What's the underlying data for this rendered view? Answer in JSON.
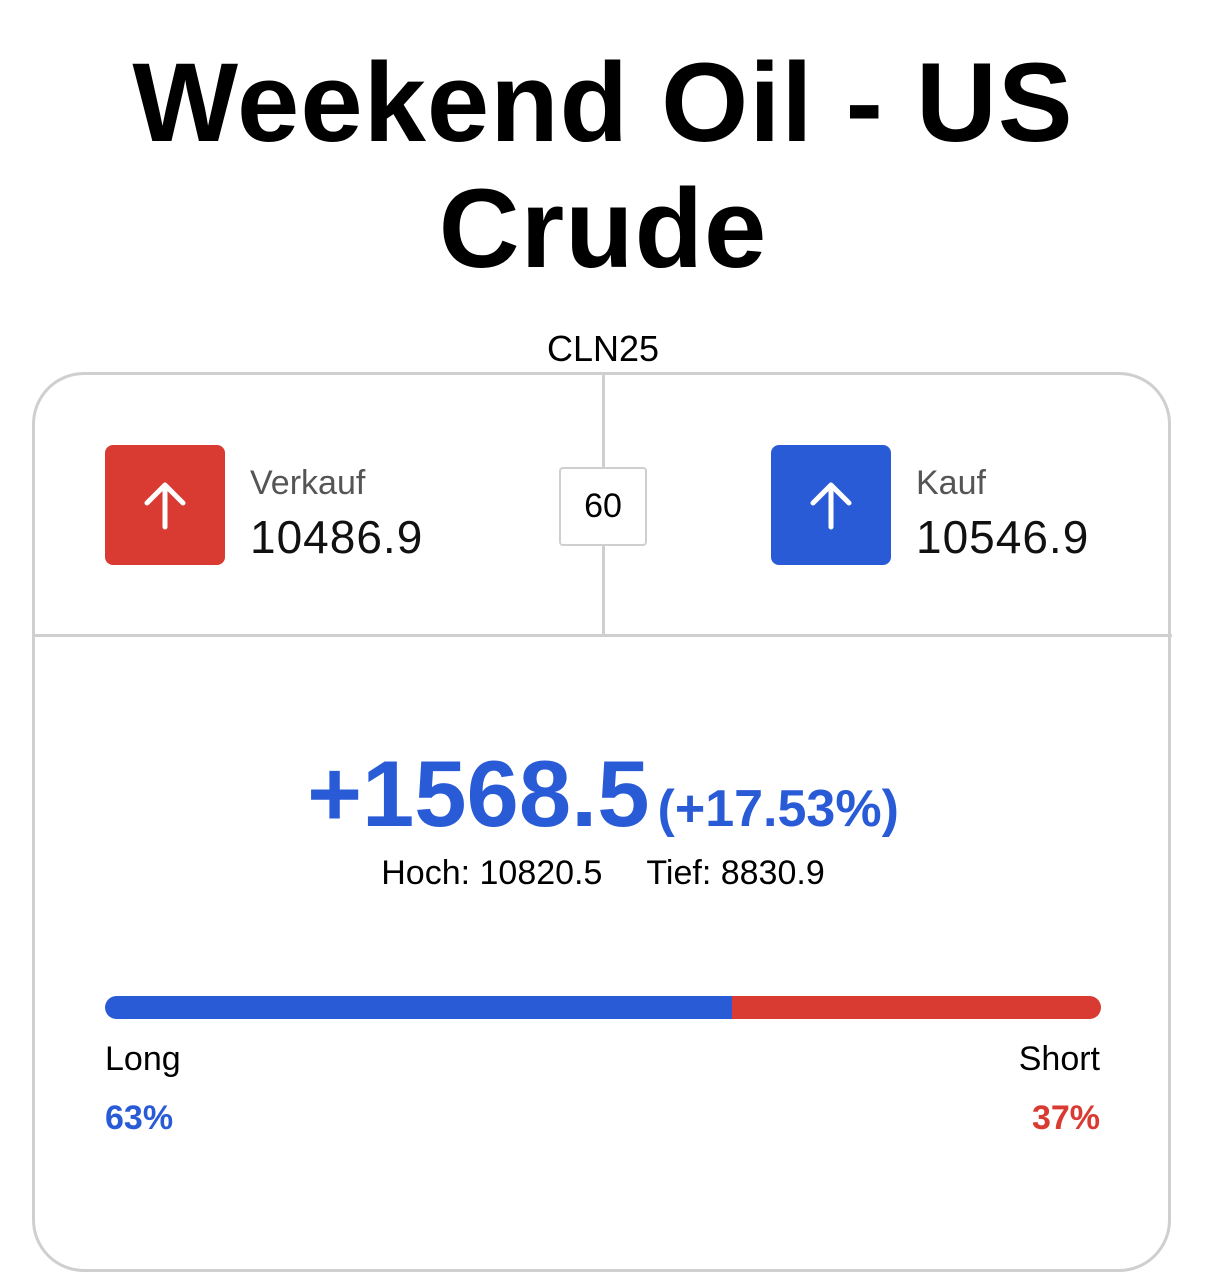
{
  "header": {
    "title": "Weekend Oil - US Crude",
    "symbol": "CLN25"
  },
  "quote": {
    "sell": {
      "label": "Verkauf",
      "price": "10486.9"
    },
    "spread": "60",
    "buy": {
      "label": "Kauf",
      "price": "10546.9"
    }
  },
  "change": {
    "absolute": "+1568.5",
    "percent": "(+17.53%)",
    "high": "Hoch: 10820.5",
    "low": "Tief: 8830.9"
  },
  "sentiment": {
    "long": {
      "name": "Long",
      "value": 63,
      "label": "63%"
    },
    "short": {
      "name": "Short",
      "value": 37,
      "label": "37%"
    }
  }
}
